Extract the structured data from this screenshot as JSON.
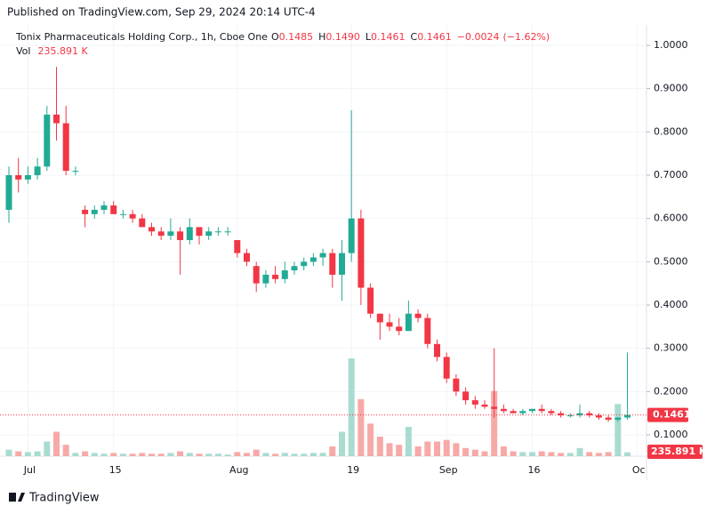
{
  "header": {
    "published": "Published on TradingView.com, Sep 29, 2024 20:14 UTC-4"
  },
  "footer": {
    "brand": "TradingView"
  },
  "chart_data": {
    "type": "candlestick",
    "title": "Tonix Pharmaceuticals Holding Corp., 1h, Cboe One",
    "volume_title": "Vol",
    "ohlc_prefixes": [
      "O",
      "H",
      "L",
      "C"
    ],
    "last_bar": {
      "values": [
        0.1485,
        0.149,
        0.1461,
        0.1461,
        -0.0024,
        -1.62
      ],
      "value_labels": [
        "0.1485",
        "0.1490",
        "0.1461",
        "0.1461",
        "−0.0024",
        "(−1.62%)"
      ]
    },
    "categories": [
      null,
      null,
      "Jul",
      null,
      null,
      null,
      null,
      null,
      null,
      null,
      null,
      "15",
      null,
      null,
      null,
      null,
      null,
      null,
      null,
      null,
      null,
      null,
      null,
      null,
      "Aug",
      null,
      null,
      null,
      null,
      null,
      null,
      null,
      null,
      null,
      null,
      null,
      "19",
      null,
      null,
      null,
      null,
      null,
      null,
      null,
      null,
      null,
      "Sep",
      null,
      null,
      null,
      null,
      null,
      null,
      null,
      null,
      "16",
      null,
      null,
      null,
      null,
      null,
      null,
      null,
      null,
      null,
      null,
      "Oc"
    ],
    "ohlc": [
      [
        0.62,
        0.72,
        0.59,
        0.7
      ],
      [
        0.7,
        0.74,
        0.66,
        0.69
      ],
      [
        0.69,
        0.72,
        0.68,
        0.7
      ],
      [
        0.7,
        0.74,
        0.69,
        0.72
      ],
      [
        0.72,
        0.86,
        0.71,
        0.84
      ],
      [
        0.84,
        0.95,
        0.78,
        0.82
      ],
      [
        0.82,
        0.86,
        0.7,
        0.71
      ],
      [
        0.71,
        0.72,
        0.7,
        0.71
      ],
      [
        0.62,
        0.63,
        0.58,
        0.61
      ],
      [
        0.61,
        0.63,
        0.6,
        0.62
      ],
      [
        0.62,
        0.64,
        0.61,
        0.63
      ],
      [
        0.63,
        0.64,
        0.61,
        0.61
      ],
      [
        0.61,
        0.62,
        0.6,
        0.61
      ],
      [
        0.61,
        0.62,
        0.59,
        0.6
      ],
      [
        0.6,
        0.61,
        0.58,
        0.58
      ],
      [
        0.58,
        0.59,
        0.56,
        0.57
      ],
      [
        0.57,
        0.58,
        0.55,
        0.56
      ],
      [
        0.56,
        0.6,
        0.55,
        0.57
      ],
      [
        0.57,
        0.58,
        0.47,
        0.55
      ],
      [
        0.55,
        0.6,
        0.54,
        0.58
      ],
      [
        0.58,
        0.58,
        0.54,
        0.56
      ],
      [
        0.56,
        0.58,
        0.55,
        0.57
      ],
      [
        0.57,
        0.58,
        0.56,
        0.57
      ],
      [
        0.57,
        0.58,
        0.56,
        0.57
      ],
      [
        0.55,
        0.55,
        0.51,
        0.52
      ],
      [
        0.52,
        0.53,
        0.49,
        0.5
      ],
      [
        0.49,
        0.5,
        0.43,
        0.45
      ],
      [
        0.45,
        0.48,
        0.44,
        0.47
      ],
      [
        0.47,
        0.49,
        0.45,
        0.46
      ],
      [
        0.46,
        0.5,
        0.45,
        0.48
      ],
      [
        0.48,
        0.5,
        0.47,
        0.49
      ],
      [
        0.49,
        0.51,
        0.48,
        0.5
      ],
      [
        0.5,
        0.52,
        0.49,
        0.51
      ],
      [
        0.51,
        0.53,
        0.49,
        0.52
      ],
      [
        0.52,
        0.53,
        0.44,
        0.47
      ],
      [
        0.47,
        0.55,
        0.41,
        0.52
      ],
      [
        0.52,
        0.85,
        0.5,
        0.6
      ],
      [
        0.6,
        0.62,
        0.4,
        0.44
      ],
      [
        0.44,
        0.45,
        0.37,
        0.38
      ],
      [
        0.38,
        0.38,
        0.32,
        0.36
      ],
      [
        0.36,
        0.38,
        0.34,
        0.35
      ],
      [
        0.35,
        0.37,
        0.33,
        0.34
      ],
      [
        0.34,
        0.41,
        0.34,
        0.38
      ],
      [
        0.38,
        0.39,
        0.36,
        0.37
      ],
      [
        0.37,
        0.38,
        0.3,
        0.31
      ],
      [
        0.31,
        0.32,
        0.27,
        0.28
      ],
      [
        0.28,
        0.29,
        0.22,
        0.23
      ],
      [
        0.23,
        0.24,
        0.19,
        0.2
      ],
      [
        0.2,
        0.21,
        0.17,
        0.18
      ],
      [
        0.18,
        0.19,
        0.16,
        0.17
      ],
      [
        0.17,
        0.18,
        0.16,
        0.165
      ],
      [
        0.165,
        0.3,
        0.14,
        0.16
      ],
      [
        0.16,
        0.17,
        0.15,
        0.155
      ],
      [
        0.155,
        0.16,
        0.15,
        0.15
      ],
      [
        0.15,
        0.16,
        0.145,
        0.155
      ],
      [
        0.155,
        0.16,
        0.15,
        0.16
      ],
      [
        0.16,
        0.17,
        0.15,
        0.155
      ],
      [
        0.155,
        0.16,
        0.145,
        0.15
      ],
      [
        0.15,
        0.155,
        0.14,
        0.145
      ],
      [
        0.145,
        0.15,
        0.14,
        0.145
      ],
      [
        0.145,
        0.17,
        0.14,
        0.15
      ],
      [
        0.15,
        0.155,
        0.14,
        0.145
      ],
      [
        0.145,
        0.15,
        0.135,
        0.14
      ],
      [
        0.14,
        0.145,
        0.13,
        0.135
      ],
      [
        0.135,
        0.14,
        0.13,
        0.14
      ],
      [
        0.14,
        0.29,
        0.135,
        0.1461
      ],
      null
    ],
    "volume": {
      "values": [
        400,
        300,
        250,
        300,
        900,
        1500,
        700,
        200,
        300,
        200,
        150,
        200,
        150,
        150,
        200,
        150,
        150,
        200,
        300,
        200,
        150,
        150,
        150,
        100,
        250,
        200,
        400,
        200,
        150,
        200,
        150,
        150,
        200,
        200,
        600,
        1500,
        6000,
        3500,
        2000,
        1200,
        800,
        700,
        1800,
        600,
        900,
        900,
        1000,
        800,
        500,
        400,
        300,
        4000,
        600,
        300,
        250,
        250,
        300,
        250,
        200,
        200,
        500,
        250,
        200,
        250,
        3200,
        235.891,
        null
      ],
      "value_labels": [
        null,
        null,
        null,
        null,
        null,
        null,
        null,
        null,
        null,
        null,
        null,
        null,
        null,
        null,
        null,
        null,
        null,
        null,
        null,
        null,
        null,
        null,
        null,
        null,
        null,
        null,
        null,
        null,
        null,
        null,
        null,
        null,
        null,
        null,
        null,
        null,
        null,
        null,
        null,
        null,
        null,
        null,
        null,
        null,
        null,
        null,
        null,
        null,
        null,
        null,
        null,
        null,
        null,
        null,
        null,
        null,
        null,
        null,
        null,
        null,
        null,
        null,
        null,
        null,
        null,
        "235.891 K",
        null
      ]
    },
    "up_color": "#22ab94",
    "down_color": "#f23645",
    "up_volume_color": "#a8dcd1",
    "down_volume_color": "#f7a9a7",
    "ylim": [
      0.0507,
      1.0472
    ],
    "yticks": [
      {
        "value": 0.1,
        "label": "0.1000"
      },
      {
        "value": 0.2,
        "label": "0.2000"
      },
      {
        "value": 0.3,
        "label": "0.3000"
      },
      {
        "value": 0.4,
        "label": "0.4000"
      },
      {
        "value": 0.5,
        "label": "0.5000"
      },
      {
        "value": 0.6,
        "label": "0.6000"
      },
      {
        "value": 0.7,
        "label": "0.7000"
      },
      {
        "value": 0.8,
        "label": "0.8000"
      },
      {
        "value": 0.9,
        "label": "0.9000"
      },
      {
        "value": 1.0,
        "label": "1.0000"
      }
    ],
    "grid": true
  }
}
